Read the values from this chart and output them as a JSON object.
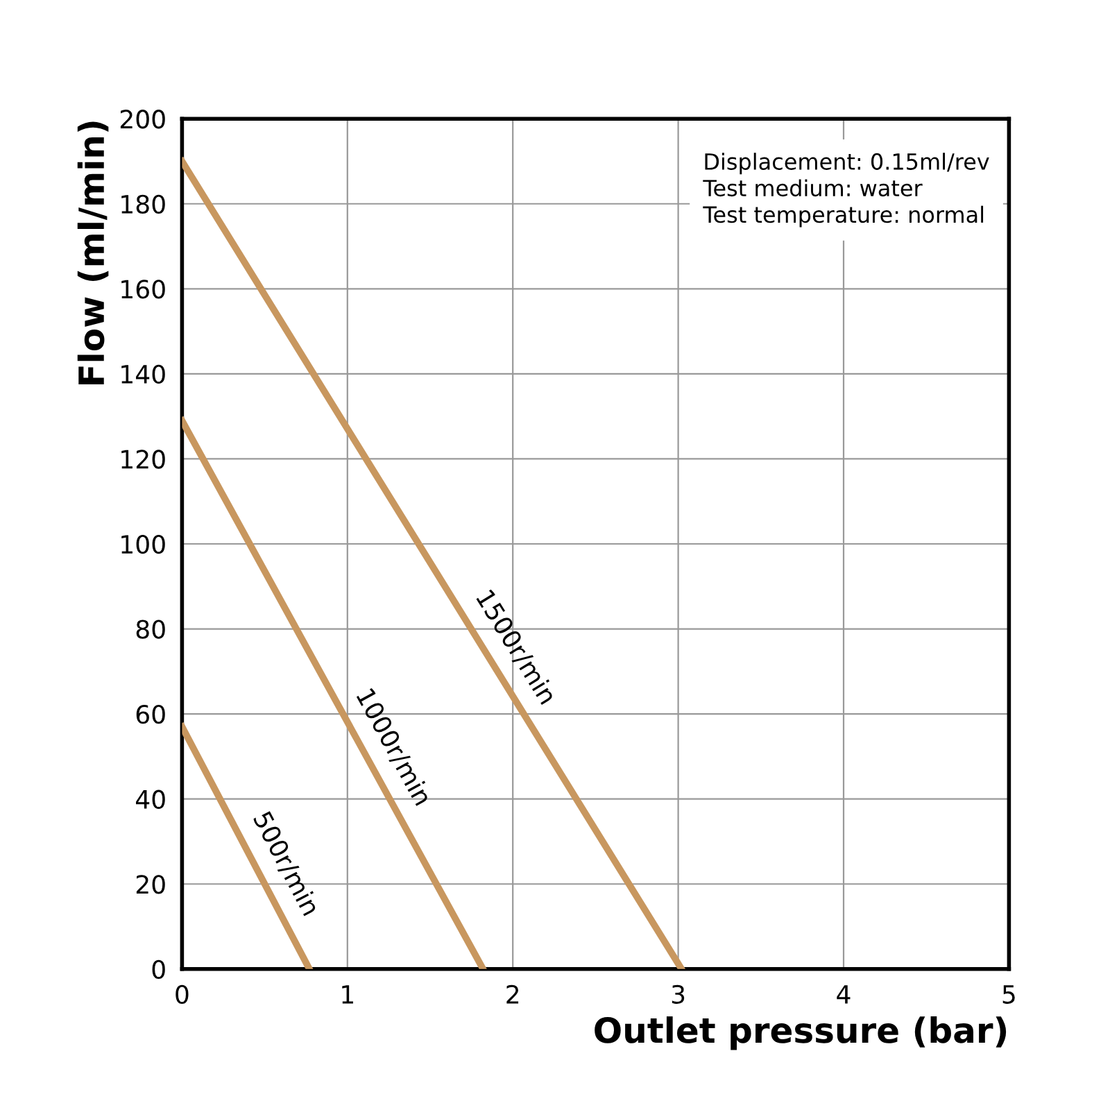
{
  "chart_data": {
    "type": "line",
    "xlabel": "Outlet pressure (bar)",
    "ylabel": "Flow (ml/min)",
    "xlim": [
      0,
      5
    ],
    "ylim": [
      0,
      200
    ],
    "xticks": [
      0,
      1,
      2,
      3,
      4,
      5
    ],
    "yticks": [
      0,
      20,
      40,
      60,
      80,
      100,
      120,
      140,
      160,
      180,
      200
    ],
    "grid": true,
    "legend": false,
    "marker": "none",
    "line_style": "solid",
    "series": [
      {
        "name": "1500r/min",
        "color": "#c8975f",
        "x": [
          0,
          3.02
        ],
        "values": [
          190,
          0
        ]
      },
      {
        "name": "1000r/min",
        "color": "#c8975f",
        "x": [
          0,
          1.82
        ],
        "values": [
          129,
          0
        ]
      },
      {
        "name": "500r/min",
        "color": "#c8975f",
        "x": [
          0,
          0.77
        ],
        "values": [
          57,
          0
        ]
      }
    ],
    "annotations": [
      "Displacement: 0.15ml/rev",
      "Test medium: water",
      "Test temperature: normal"
    ]
  }
}
